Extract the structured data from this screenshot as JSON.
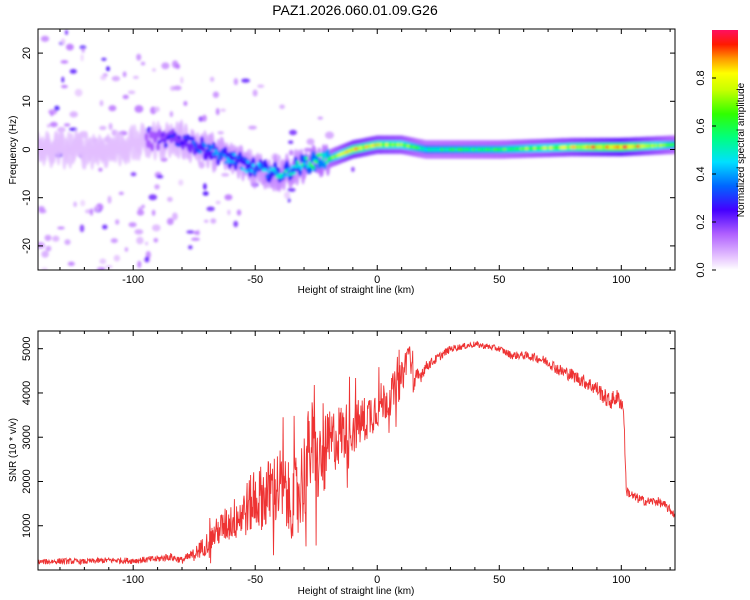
{
  "figure": {
    "title": "PAZ1.2026.060.01.09.G26"
  },
  "chart_data": [
    {
      "type": "heatmap",
      "id": "spectrogram",
      "title": "",
      "xlabel": "Height of straight line (km)",
      "ylabel": "Frequency (Hz)",
      "xlim": [
        -139,
        122
      ],
      "ylim": [
        -25,
        25
      ],
      "xticks": [
        -100,
        -50,
        0,
        50,
        100
      ],
      "yticks": [
        -20,
        -10,
        0,
        10,
        20
      ],
      "colorbar": {
        "label": "Normalized spectral amplitude",
        "range": [
          0,
          1
        ],
        "ticks": [
          "0.0",
          "0.2",
          "0.4",
          "0.6",
          "0.8"
        ],
        "tick_values": [
          0.0,
          0.2,
          0.4,
          0.6,
          0.8
        ]
      },
      "ridge": {
        "description_points_x": [
          -139,
          -110,
          -90,
          -80,
          -70,
          -60,
          -50,
          -40,
          -35,
          -30,
          -20,
          -10,
          0,
          10,
          20,
          50,
          80,
          100,
          122
        ],
        "description_points_freq": [
          0,
          0,
          2,
          2,
          0,
          -2,
          -4,
          -5,
          -4,
          -3,
          -2,
          0,
          1,
          1,
          0,
          0,
          0.5,
          0.5,
          1
        ],
        "peak_amplitude": [
          0.15,
          0.2,
          0.25,
          0.3,
          0.35,
          0.4,
          0.4,
          0.45,
          0.45,
          0.5,
          0.6,
          0.8,
          0.75,
          0.7,
          0.55,
          0.6,
          0.75,
          0.9,
          0.6
        ]
      }
    },
    {
      "type": "line",
      "id": "snr",
      "title": "",
      "xlabel": "Height of straight line (km)",
      "ylabel": "SNR (10 * v/v)",
      "xlim": [
        -139,
        122
      ],
      "ylim": [
        0,
        5400
      ],
      "xticks": [
        -100,
        -50,
        0,
        50,
        100
      ],
      "yticks": [
        1000,
        2000,
        3000,
        4000,
        5000
      ],
      "color": "#ee3333",
      "series": [
        {
          "name": "SNR",
          "x": [
            -139,
            -130,
            -120,
            -110,
            -100,
            -90,
            -85,
            -80,
            -75,
            -70,
            -65,
            -60,
            -55,
            -50,
            -45,
            -40,
            -35,
            -30,
            -27,
            -25,
            -22,
            -20,
            -15,
            -10,
            -5,
            0,
            5,
            10,
            13,
            15,
            20,
            25,
            30,
            35,
            40,
            45,
            50,
            55,
            60,
            65,
            70,
            75,
            80,
            85,
            90,
            95,
            98,
            100,
            101,
            102,
            105,
            110,
            115,
            118,
            122
          ],
          "values": [
            180,
            200,
            190,
            220,
            210,
            250,
            300,
            220,
            350,
            600,
            900,
            1100,
            1300,
            1600,
            1700,
            1900,
            1500,
            2100,
            2900,
            2300,
            2500,
            2800,
            3100,
            3200,
            3400,
            3700,
            3900,
            4300,
            5000,
            4200,
            4600,
            4800,
            5000,
            5050,
            5100,
            5050,
            5000,
            4850,
            4850,
            4800,
            4700,
            4500,
            4400,
            4250,
            4100,
            3800,
            3900,
            3800,
            3600,
            1800,
            1650,
            1550,
            1550,
            1450,
            1250
          ],
          "noise_amplitude": [
            60,
            70,
            60,
            70,
            70,
            80,
            90,
            80,
            150,
            250,
            350,
            450,
            600,
            700,
            800,
            900,
            800,
            1100,
            1100,
            900,
            900,
            800,
            700,
            600,
            550,
            500,
            450,
            400,
            300,
            300,
            120,
            100,
            80,
            70,
            70,
            70,
            70,
            90,
            90,
            100,
            120,
            150,
            150,
            160,
            180,
            200,
            200,
            200,
            150,
            120,
            120,
            100,
            100,
            100,
            100
          ]
        }
      ]
    }
  ]
}
